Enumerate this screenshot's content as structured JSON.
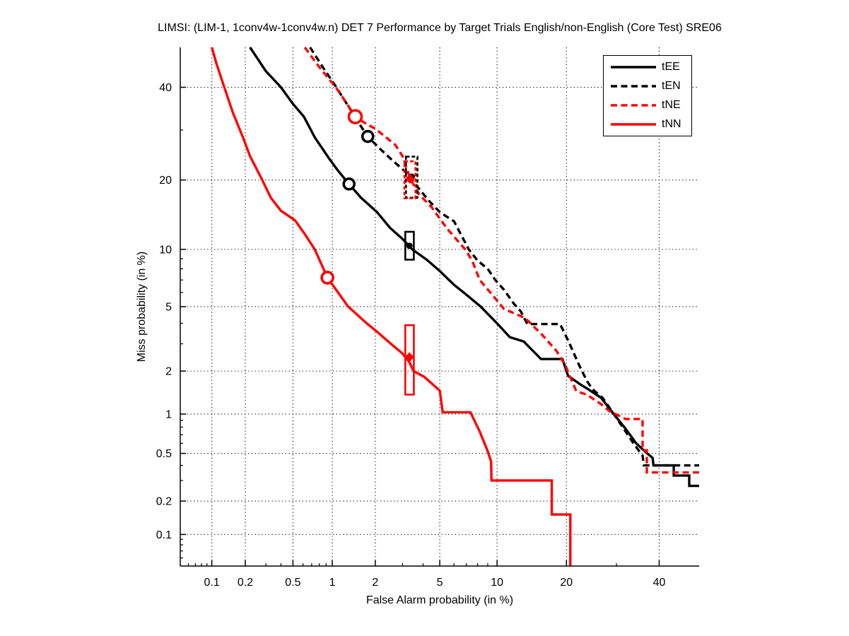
{
  "colors": {
    "black": "#000000",
    "red": "#ff0000",
    "background": "#ffffff",
    "grid": "#000000"
  },
  "chart_data": {
    "type": "line",
    "subtype": "DET-curve (normal deviate / probit scale on both axes)",
    "title": "LIMSI: (LIM-1, 1conv4w-1conv4w.n) DET 7 Performance by Target Trials English/non-English (Core Test) SRE06",
    "xlabel": "False Alarm probability (in %)",
    "ylabel": "Miss probability (in %)",
    "xlim_pct": [
      0.05,
      50
    ],
    "ylim_pct": [
      0.05,
      50
    ],
    "grid": "dotted lines at every major tick, both axes",
    "legend_position": "top-right inside plot",
    "major_ticks_pct": [
      0.1,
      0.2,
      0.5,
      1,
      2,
      5,
      10,
      20,
      40
    ],
    "tick_labels": [
      "0.1",
      "0.2",
      "0.5",
      "1",
      "2",
      "5",
      "10",
      "20",
      "40"
    ],
    "minor_ticks_pct": [
      0.06,
      0.07,
      0.08,
      0.09,
      0.3,
      0.4,
      0.6,
      0.7,
      0.8,
      0.9,
      3,
      4,
      6,
      7,
      8,
      9,
      30
    ],
    "series": [
      {
        "name": "tEE",
        "color": "black",
        "style": "solid",
        "points": [
          [
            0.22,
            50
          ],
          [
            0.3,
            44
          ],
          [
            0.4,
            40
          ],
          [
            0.5,
            36
          ],
          [
            0.61,
            33
          ],
          [
            0.74,
            28.4
          ],
          [
            0.95,
            24
          ],
          [
            1.1,
            21.7
          ],
          [
            1.32,
            19.3
          ],
          [
            1.6,
            17
          ],
          [
            2.05,
            14.8
          ],
          [
            2.5,
            12.6
          ],
          [
            3.0,
            11.2
          ],
          [
            3.44,
            10
          ],
          [
            4.2,
            8.9
          ],
          [
            5.0,
            7.8
          ],
          [
            6.0,
            6.6
          ],
          [
            6.9,
            5.9
          ],
          [
            8.3,
            5.0
          ],
          [
            10.0,
            4.0
          ],
          [
            11.5,
            3.3
          ],
          [
            13.3,
            3.1
          ],
          [
            15.8,
            2.4
          ],
          [
            19.3,
            2.4
          ],
          [
            20.3,
            1.86
          ],
          [
            22.5,
            1.63
          ],
          [
            23.9,
            1.52
          ],
          [
            26.7,
            1.31
          ],
          [
            29.4,
            1.0
          ],
          [
            32.0,
            0.78
          ],
          [
            34.5,
            0.6
          ],
          [
            36.5,
            0.52
          ],
          [
            38.4,
            0.46
          ],
          [
            38.6,
            0.4
          ],
          [
            43.6,
            0.4
          ],
          [
            43.6,
            0.33
          ],
          [
            47.5,
            0.33
          ],
          [
            47.5,
            0.27
          ],
          [
            50,
            0.27
          ]
        ],
        "marker": {
          "shape": "open-circle",
          "fa": 1.32,
          "miss": 19.3,
          "r": 7.5
        },
        "box": {
          "fa": [
            3.12,
            3.52
          ],
          "miss": [
            8.9,
            12.1
          ],
          "center": [
            3.31,
            10.4
          ],
          "center_marker": "dot"
        }
      },
      {
        "name": "tEN",
        "color": "black",
        "style": "dashed",
        "points": [
          [
            0.68,
            50
          ],
          [
            0.85,
            45
          ],
          [
            1.07,
            40
          ],
          [
            1.3,
            35.5
          ],
          [
            1.55,
            31.5
          ],
          [
            1.78,
            28.6
          ],
          [
            2.1,
            26.3
          ],
          [
            2.6,
            23.6
          ],
          [
            3.1,
            21.6
          ],
          [
            3.66,
            19.0
          ],
          [
            4.3,
            16.6
          ],
          [
            5.0,
            14.8
          ],
          [
            5.5,
            14.1
          ],
          [
            6.0,
            13.5
          ],
          [
            7.2,
            10.0
          ],
          [
            8.0,
            8.8
          ],
          [
            9.0,
            8.0
          ],
          [
            9.8,
            7.0
          ],
          [
            10.8,
            6.2
          ],
          [
            12.0,
            5.2
          ],
          [
            12.9,
            4.7
          ],
          [
            13.8,
            3.96
          ],
          [
            18.9,
            3.96
          ],
          [
            20.4,
            3.1
          ],
          [
            22.3,
            2.2
          ],
          [
            23.9,
            1.7
          ],
          [
            25.0,
            1.5
          ],
          [
            27.0,
            1.31
          ],
          [
            29.0,
            1.05
          ],
          [
            31.6,
            0.78
          ],
          [
            34.0,
            0.59
          ],
          [
            36.0,
            0.48
          ],
          [
            36.3,
            0.4
          ],
          [
            50,
            0.4
          ]
        ],
        "marker": {
          "shape": "open-circle",
          "fa": 1.78,
          "miss": 28.6,
          "r": 7.5
        },
        "box": {
          "fa": [
            3.15,
            3.7
          ],
          "miss": [
            17.0,
            24.4
          ],
          "center": [
            3.42,
            20.6
          ],
          "center_marker": "dot"
        }
      },
      {
        "name": "tNE",
        "color": "red",
        "style": "dashed",
        "points": [
          [
            0.62,
            50
          ],
          [
            0.8,
            45
          ],
          [
            1.06,
            40
          ],
          [
            1.25,
            36.5
          ],
          [
            1.46,
            33
          ],
          [
            1.75,
            31.3
          ],
          [
            2.0,
            30.3
          ],
          [
            2.7,
            26.8
          ],
          [
            3.0,
            24.5
          ],
          [
            3.35,
            20.2
          ],
          [
            3.8,
            17.5
          ],
          [
            4.5,
            15.5
          ],
          [
            5.5,
            12.5
          ],
          [
            6.9,
            10.0
          ],
          [
            7.5,
            8.8
          ],
          [
            8.2,
            7.0
          ],
          [
            9.5,
            5.8
          ],
          [
            10.8,
            4.85
          ],
          [
            13.5,
            4.3
          ],
          [
            16.0,
            3.4
          ],
          [
            18.3,
            2.7
          ],
          [
            19.9,
            2.15
          ],
          [
            20.4,
            1.93
          ],
          [
            21.8,
            1.46
          ],
          [
            23.8,
            1.38
          ],
          [
            26.7,
            1.18
          ],
          [
            28.5,
            1.05
          ],
          [
            32.0,
            0.92
          ],
          [
            36.0,
            0.92
          ],
          [
            36.0,
            0.53
          ],
          [
            37.0,
            0.53
          ],
          [
            37.0,
            0.35
          ],
          [
            50,
            0.35
          ]
        ],
        "marker": {
          "shape": "open-circle",
          "fa": 1.46,
          "miss": 33,
          "r": 9
        },
        "box": {
          "fa": [
            3.08,
            3.6
          ],
          "miss": [
            16.9,
            23.5
          ],
          "center": [
            3.33,
            20.2
          ],
          "center_marker": "diamond"
        }
      },
      {
        "name": "tNN",
        "color": "red",
        "style": "solid",
        "points": [
          [
            0.1,
            50
          ],
          [
            0.11,
            46
          ],
          [
            0.13,
            40
          ],
          [
            0.155,
            34
          ],
          [
            0.19,
            28.5
          ],
          [
            0.22,
            24.5
          ],
          [
            0.28,
            20
          ],
          [
            0.33,
            17
          ],
          [
            0.4,
            15
          ],
          [
            0.52,
            13.6
          ],
          [
            0.62,
            11.8
          ],
          [
            0.74,
            10
          ],
          [
            0.92,
            7.2
          ],
          [
            1.05,
            6.3
          ],
          [
            1.3,
            5.0
          ],
          [
            1.42,
            4.7
          ],
          [
            1.75,
            4.0
          ],
          [
            2.1,
            3.5
          ],
          [
            2.53,
            3.0
          ],
          [
            3.0,
            2.6
          ],
          [
            3.3,
            2.3
          ],
          [
            3.51,
            2.0
          ],
          [
            4.06,
            1.83
          ],
          [
            5.0,
            1.47
          ],
          [
            5.2,
            1.03
          ],
          [
            7.35,
            1.03
          ],
          [
            8.2,
            0.74
          ],
          [
            9.0,
            0.52
          ],
          [
            9.35,
            0.43
          ],
          [
            9.4,
            0.3
          ],
          [
            17.5,
            0.3
          ],
          [
            17.5,
            0.152
          ],
          [
            20.7,
            0.152
          ],
          [
            20.7,
            0.05
          ]
        ],
        "marker": {
          "shape": "open-circle",
          "fa": 0.92,
          "miss": 7.2,
          "r": 8
        },
        "box": {
          "fa": [
            3.12,
            3.52
          ],
          "miss": [
            1.38,
            3.9
          ],
          "center": [
            3.31,
            2.47
          ],
          "center_marker": "diamond"
        }
      }
    ]
  }
}
